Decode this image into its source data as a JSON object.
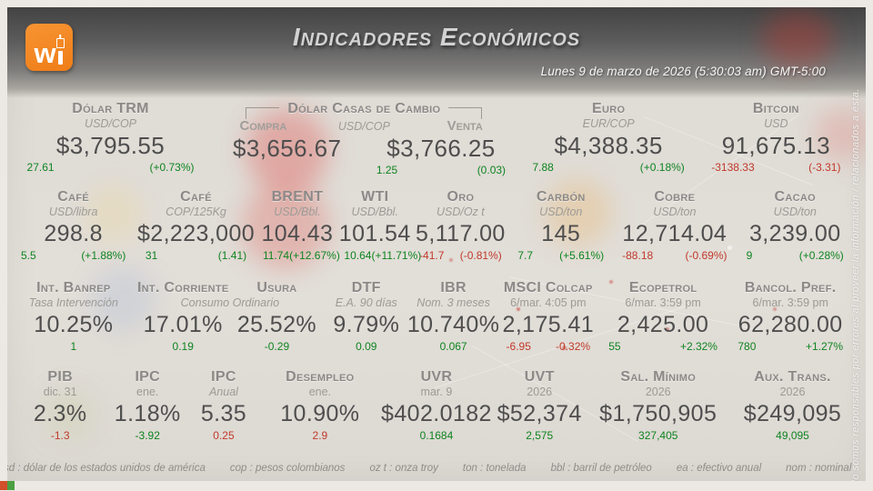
{
  "header": {
    "title": "Indicadores Económicos",
    "datetime": "Lunes 9 de marzo de 2026 (5:30:03 am) GMT-5:00",
    "logo": {
      "letter": "w",
      "color": "#ef7d17"
    }
  },
  "colors": {
    "up": "#0e8420",
    "down": "#c0392b"
  },
  "rows": [
    {
      "id": "row1",
      "cells": [
        {
          "type": "simple",
          "flex": 2.2,
          "title": "Dólar TRM",
          "subtitle": "USD/COP",
          "italic": true,
          "value": "$3,795.55",
          "changes": [
            {
              "t": "27.61",
              "c": "up"
            },
            {
              "t": "(+0.73%)",
              "c": "up"
            }
          ]
        },
        {
          "type": "fx",
          "flex": 3.4,
          "title": "Dólar Casas de Cambio",
          "buy_label": "Compra",
          "unit": "USD/COP",
          "sell_label": "Venta",
          "buy": "$3,656.67",
          "sell": "$3,766.25",
          "sell_changes": [
            {
              "t": "1.25",
              "c": "up"
            },
            {
              "t": "(0.03)",
              "c": "up"
            }
          ]
        },
        {
          "type": "simple",
          "flex": 2.0,
          "title": "Euro",
          "subtitle": "EUR/COP",
          "italic": true,
          "value": "$4,388.35",
          "changes": [
            {
              "t": "7.88",
              "c": "up"
            },
            {
              "t": "(+0.18%)",
              "c": "up"
            }
          ]
        },
        {
          "type": "simple",
          "flex": 1.7,
          "title": "Bitcoin",
          "subtitle": "USD",
          "italic": true,
          "value": "91,675.13",
          "changes": [
            {
              "t": "-3138.33",
              "c": "down"
            },
            {
              "t": "(-3.31)",
              "c": "down"
            }
          ]
        }
      ]
    },
    {
      "id": "row2",
      "cells": [
        {
          "type": "simple",
          "flex": 1.4,
          "title": "Café",
          "subtitle": "USD/libra",
          "italic": true,
          "value": "298.8",
          "changes": [
            {
              "t": "5.5",
              "c": "up"
            },
            {
              "t": "(+1.88%)",
              "c": "up"
            }
          ]
        },
        {
          "type": "simple",
          "flex": 1.35,
          "title": "Café",
          "subtitle": "COP/125Kg",
          "italic": true,
          "value": "$2,223,000",
          "changes": [
            {
              "t": "31",
              "c": "up"
            },
            {
              "t": "(1.41)",
              "c": "up"
            }
          ]
        },
        {
          "type": "simple",
          "flex": 0.92,
          "title": "BRENT",
          "subtitle": "USD/Bbl.",
          "italic": true,
          "value": "104.43",
          "changes": [
            {
              "t": "11.74",
              "c": "up"
            },
            {
              "t": "(+12.67%)",
              "c": "up"
            }
          ]
        },
        {
          "type": "simple",
          "flex": 0.82,
          "title": "WTI",
          "subtitle": "USD/Bbl.",
          "italic": true,
          "value": "101.54",
          "changes": [
            {
              "t": "10.64",
              "c": "up"
            },
            {
              "t": "(+11.71%)",
              "c": "up"
            }
          ]
        },
        {
          "type": "simple",
          "flex": 1.1,
          "title": "Oro",
          "subtitle": "USD/Oz t",
          "italic": true,
          "value": "5,117.00",
          "changes": [
            {
              "t": "-41.7",
              "c": "down"
            },
            {
              "t": "(-0.81%)",
              "c": "down"
            }
          ]
        },
        {
          "type": "simple",
          "flex": 1.15,
          "title": "Carbón",
          "subtitle": "USD/ton",
          "italic": true,
          "value": "145",
          "changes": [
            {
              "t": "7.7",
              "c": "up"
            },
            {
              "t": "(+5.61%)",
              "c": "up"
            }
          ]
        },
        {
          "type": "simple",
          "flex": 1.4,
          "title": "Cobre",
          "subtitle": "USD/ton",
          "italic": true,
          "value": "12,714.04",
          "changes": [
            {
              "t": "-88.18",
              "c": "down"
            },
            {
              "t": "(-0.69%)",
              "c": "down"
            }
          ]
        },
        {
          "type": "simple",
          "flex": 1.3,
          "title": "Cacao",
          "subtitle": "USD/ton",
          "italic": true,
          "value": "3,239.00",
          "changes": [
            {
              "t": "9",
              "c": "up"
            },
            {
              "t": "(+0.28%)",
              "c": "up"
            }
          ]
        }
      ]
    },
    {
      "id": "row3",
      "cells": [
        {
          "type": "simple",
          "flex": 1.4,
          "title": "Int. Banrep",
          "subtitle": "Tasa Intervención",
          "italic": true,
          "value": "10.25%",
          "changes": [
            {
              "t": "1",
              "c": "up"
            }
          ]
        },
        {
          "type": "pair",
          "flex": 2.1,
          "subtitle": "Consumo Ordinario",
          "italic": true,
          "items": [
            {
              "title": "Int. Corriente",
              "value": "17.01%",
              "changes": [
                {
                  "t": "0.19",
                  "c": "up"
                }
              ]
            },
            {
              "title": "Usura",
              "value": "25.52%",
              "changes": [
                {
                  "t": "-0.29",
                  "c": "up"
                }
              ]
            }
          ]
        },
        {
          "type": "simple",
          "flex": 0.95,
          "title": "DTF",
          "subtitle": "E.A. 90 días",
          "italic": true,
          "value": "9.79%",
          "changes": [
            {
              "t": "0.09",
              "c": "up"
            }
          ]
        },
        {
          "type": "simple",
          "flex": 1.0,
          "title": "IBR",
          "subtitle": "Nom. 3 meses",
          "italic": true,
          "value": "10.740%",
          "changes": [
            {
              "t": "0.067",
              "c": "up"
            }
          ]
        },
        {
          "type": "simple",
          "flex": 1.12,
          "title": "MSCI Colcap",
          "subtitle": "6/mar. 4:05 pm",
          "italic": false,
          "value": "2,175.41",
          "changes": [
            {
              "t": "-6.95",
              "c": "down"
            },
            {
              "t": "-0.32%",
              "c": "down"
            }
          ]
        },
        {
          "type": "simple",
          "flex": 1.45,
          "title": "Ecopetrol",
          "subtitle": "6/mar. 3:59 pm",
          "italic": false,
          "value": "2,425.00",
          "changes": [
            {
              "t": "55",
              "c": "up"
            },
            {
              "t": "+2.32%",
              "c": "up"
            }
          ]
        },
        {
          "type": "simple",
          "flex": 1.4,
          "title": "Bancol. Pref.",
          "subtitle": "6/mar. 3:59 pm",
          "italic": false,
          "value": "62,280.00",
          "changes": [
            {
              "t": "780",
              "c": "up"
            },
            {
              "t": "+1.27%",
              "c": "up"
            }
          ]
        }
      ]
    },
    {
      "id": "row4",
      "cells": [
        {
          "type": "simple",
          "flex": 1.1,
          "title": "PIB",
          "subtitle": "dic. 31",
          "italic": false,
          "value": "2.3%",
          "changes": [
            {
              "t": "-1.3",
              "c": "down"
            }
          ]
        },
        {
          "type": "simple",
          "flex": 0.85,
          "title": "IPC",
          "subtitle": "ene.",
          "italic": false,
          "value": "1.18%",
          "changes": [
            {
              "t": "-3.92",
              "c": "up"
            }
          ]
        },
        {
          "type": "simple",
          "flex": 0.85,
          "title": "IPC",
          "subtitle": "Anual",
          "italic": true,
          "value": "5.35",
          "changes": [
            {
              "t": "0.25",
              "c": "down"
            }
          ]
        },
        {
          "type": "simple",
          "flex": 1.3,
          "title": "Desempleo",
          "subtitle": "ene.",
          "italic": false,
          "value": "10.90%",
          "changes": [
            {
              "t": "2.9",
              "c": "down"
            }
          ]
        },
        {
          "type": "simple",
          "flex": 1.3,
          "title": "UVR",
          "subtitle": "mar. 9",
          "italic": false,
          "value": "$402.0182",
          "changes": [
            {
              "t": "0.1684",
              "c": "up"
            }
          ]
        },
        {
          "type": "simple",
          "flex": 1.0,
          "title": "UVT",
          "subtitle": "2026",
          "italic": false,
          "value": "$52,374",
          "changes": [
            {
              "t": "2,575",
              "c": "up"
            }
          ]
        },
        {
          "type": "simple",
          "flex": 1.65,
          "title": "Sal. Mínimo",
          "subtitle": "2026",
          "italic": false,
          "value": "$1,750,905",
          "changes": [
            {
              "t": "327,405",
              "c": "up"
            }
          ]
        },
        {
          "type": "simple",
          "flex": 1.35,
          "title": "Aux. Trans.",
          "subtitle": "2026",
          "italic": false,
          "value": "$249,095",
          "changes": [
            {
              "t": "49,095",
              "c": "up"
            }
          ]
        }
      ]
    }
  ],
  "footer": {
    "legend": [
      "usd : dólar de los estados unidos de américa",
      "cop : pesos colombianos",
      "oz t : onza troy",
      "ton : tonelada",
      "bbl : barril de petróleo",
      "ea : efectivo anual",
      "nom : nominal"
    ]
  },
  "disclaimer": "No somos responsables por errores al proveer la información / relacionados a ésta."
}
